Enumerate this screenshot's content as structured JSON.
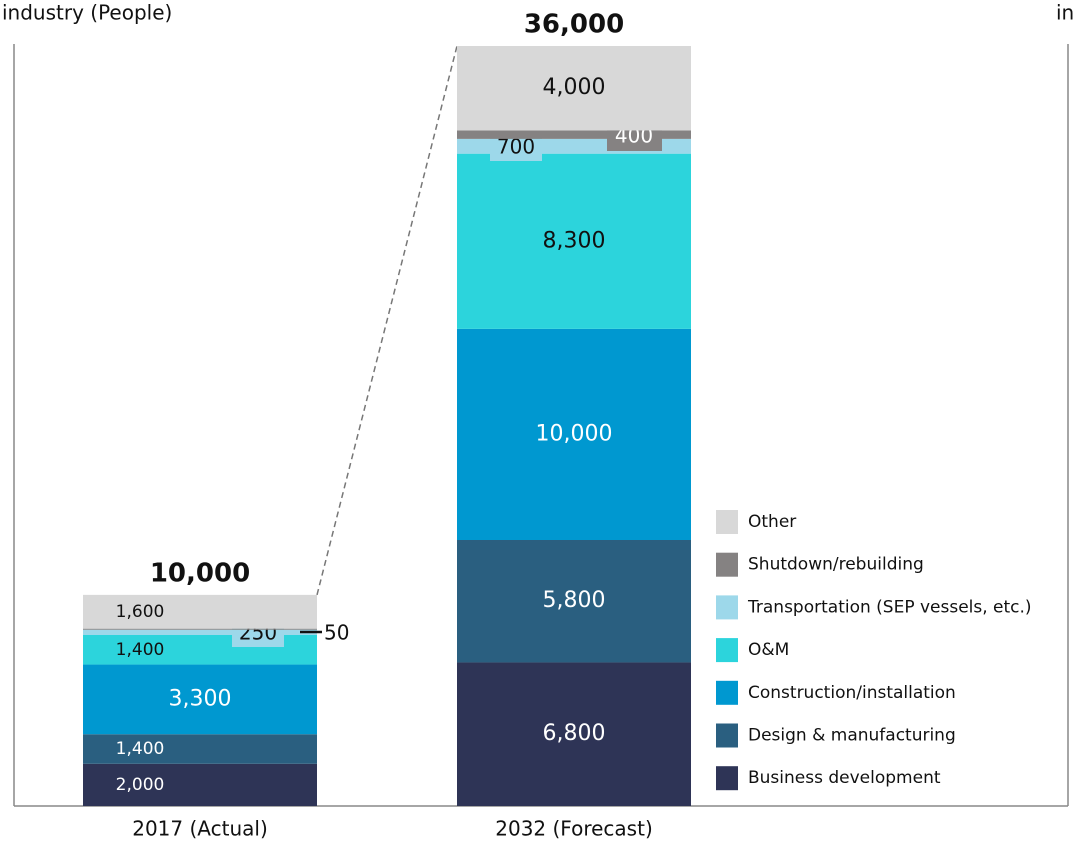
{
  "chart_data": {
    "type": "stacked-bar",
    "title": "industry (People)",
    "annotations": [
      "in"
    ],
    "categories": [
      "2017 (Actual)",
      "2032 (Forecast)"
    ],
    "ylim": [
      0,
      36000
    ],
    "series": [
      {
        "name": "Business development",
        "color": "#2e3456",
        "values": [
          2000,
          6800
        ],
        "value_labels": [
          "2,000",
          "6,800"
        ]
      },
      {
        "name": "Design & manufacturing",
        "color": "#2a5f80",
        "values": [
          1400,
          5800
        ],
        "value_labels": [
          "1,400",
          "5,800"
        ]
      },
      {
        "name": "Construction/installation",
        "color": "#0098d0",
        "values": [
          3300,
          10000
        ],
        "value_labels": [
          "3,300",
          "10,000"
        ]
      },
      {
        "name": "O&M",
        "color": "#2cd4dc",
        "values": [
          1400,
          8300
        ],
        "value_labels": [
          "1,400",
          "8,300"
        ]
      },
      {
        "name": "Transportation (SEP vessels, etc.)",
        "color": "#9dd8ea",
        "values": [
          250,
          700
        ],
        "value_labels": [
          "250",
          "700"
        ]
      },
      {
        "name": "Shutdown/rebuilding",
        "color": "#858282",
        "values": [
          50,
          400
        ],
        "value_labels": [
          "50",
          "400"
        ]
      },
      {
        "name": "Other",
        "color": "#d8d8d8",
        "values": [
          1600,
          4000
        ],
        "value_labels": [
          "1,600",
          "4,000"
        ]
      }
    ],
    "totals": [
      10000,
      36000
    ],
    "total_labels": [
      "10,000",
      "36,000"
    ]
  }
}
